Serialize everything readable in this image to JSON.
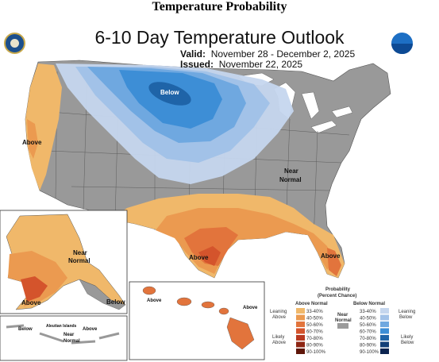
{
  "header_title": "Temperature Probability",
  "map_title": "6-10 Day Temperature Outlook",
  "valid": {
    "label": "Valid:",
    "value": "November 28 - December 2, 2025"
  },
  "issued": {
    "label": "Issued:",
    "value": "November 22, 2025"
  },
  "region_labels": {
    "below_north": "Below",
    "above_west": "Above",
    "near_normal_east": [
      "Near",
      "Normal"
    ],
    "above_texas": "Above",
    "above_florida": "Above",
    "near_normal_alaska": [
      "Near",
      "Normal"
    ],
    "above_alaska": "Above",
    "below_alaska_se": "Below",
    "below_aleutian": "Below",
    "aleutian_islands": "Aleutian Islands",
    "near_normal_aleutian": [
      "Near",
      "Normal"
    ],
    "above_aleutian": "Above",
    "above_hawaii_west": "Above",
    "above_hawaii_east": "Above"
  },
  "legend": {
    "title": [
      "Probability",
      "(Percent Chance)"
    ],
    "above_header": "Above Normal",
    "below_header": "Below Normal",
    "near_header": [
      "Near",
      "Normal"
    ],
    "left_labels": [
      "Leaning",
      "Above",
      "Likely",
      "Above"
    ],
    "right_labels": [
      "Leaning",
      "Below",
      "Likely",
      "Below"
    ],
    "above_bins": [
      {
        "label": "33-40%",
        "color": "#f0b86a"
      },
      {
        "label": "40-50%",
        "color": "#eb9a50"
      },
      {
        "label": "50-60%",
        "color": "#e2743c"
      },
      {
        "label": "60-70%",
        "color": "#d4542c"
      },
      {
        "label": "70-80%",
        "color": "#b8381f"
      },
      {
        "label": "80-90%",
        "color": "#8e2614"
      },
      {
        "label": "90-100%",
        "color": "#5e1609"
      }
    ],
    "below_bins": [
      {
        "label": "33-40%",
        "color": "#c5d6ee"
      },
      {
        "label": "40-50%",
        "color": "#a2c2e8"
      },
      {
        "label": "50-60%",
        "color": "#6fa8e0"
      },
      {
        "label": "60-70%",
        "color": "#3d8ed6"
      },
      {
        "label": "70-80%",
        "color": "#1f64a8"
      },
      {
        "label": "80-90%",
        "color": "#133f78"
      },
      {
        "label": "90-100%",
        "color": "#0b2450"
      }
    ],
    "near_color": "#9a9a9a"
  }
}
